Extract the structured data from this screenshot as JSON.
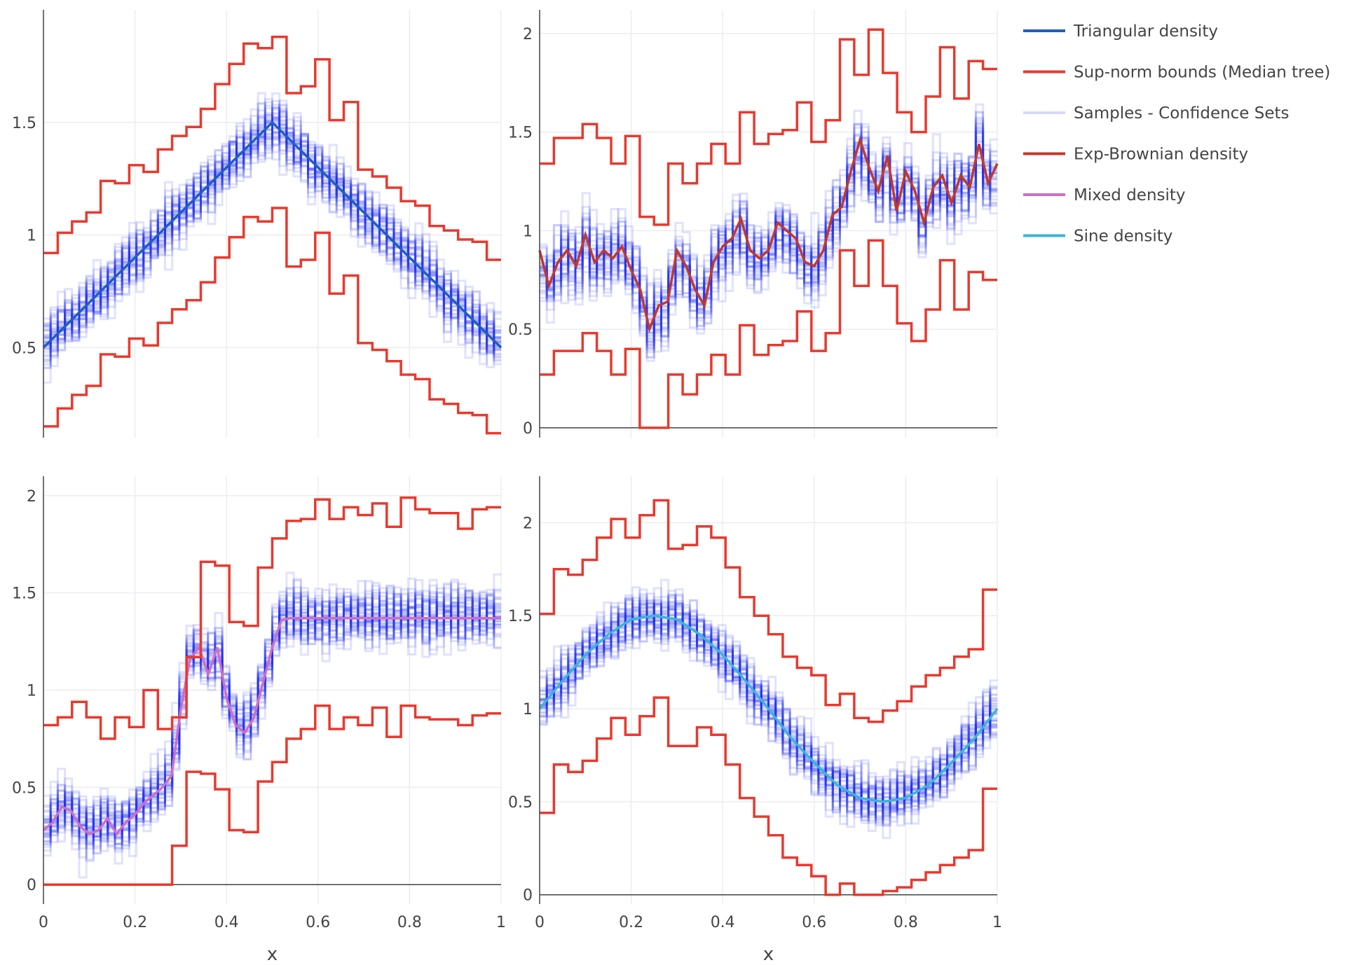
{
  "chart_data": [
    {
      "type": "line",
      "panel": "top-left",
      "xlabel": "",
      "ylabel": "",
      "xlim": [
        0,
        1
      ],
      "ylim": [
        0.1,
        2.0
      ],
      "xticks": [
        0,
        0.2,
        0.4,
        0.6,
        0.8,
        1
      ],
      "yticks": [
        0.5,
        1,
        1.5
      ],
      "ytick_labels": [
        "0.5",
        "1",
        "1.5"
      ],
      "show_xtick_labels": false,
      "zero_line": false,
      "true_density": {
        "name": "Triangular  density",
        "color": "#1f5fbf",
        "x": [
          0,
          0.5,
          1
        ],
        "y": [
          0.5,
          1.5,
          0.5
        ]
      },
      "bound_edges": [
        0,
        0.0312,
        0.0625,
        0.0938,
        0.125,
        0.1562,
        0.1875,
        0.2188,
        0.25,
        0.2812,
        0.3125,
        0.3438,
        0.375,
        0.4062,
        0.4375,
        0.4688,
        0.5,
        0.5312,
        0.5625,
        0.5938,
        0.625,
        0.6562,
        0.6875,
        0.7188,
        0.75,
        0.7812,
        0.8125,
        0.8438,
        0.875,
        0.9062,
        0.9375,
        0.9688,
        1
      ],
      "upper_bound": [
        0.92,
        1.01,
        1.06,
        1.1,
        1.24,
        1.23,
        1.31,
        1.28,
        1.38,
        1.44,
        1.48,
        1.56,
        1.67,
        1.76,
        1.85,
        1.83,
        1.88,
        1.63,
        1.66,
        1.78,
        1.51,
        1.59,
        1.29,
        1.26,
        1.21,
        1.15,
        1.13,
        1.04,
        1.02,
        0.98,
        0.97,
        0.89
      ],
      "lower_bound": [
        0.15,
        0.23,
        0.29,
        0.33,
        0.47,
        0.46,
        0.54,
        0.51,
        0.61,
        0.67,
        0.71,
        0.79,
        0.9,
        0.99,
        1.08,
        1.06,
        1.12,
        0.86,
        0.89,
        1.01,
        0.74,
        0.82,
        0.52,
        0.49,
        0.44,
        0.38,
        0.36,
        0.27,
        0.25,
        0.21,
        0.2,
        0.12
      ],
      "sample_sd": 0.06,
      "sample_bias": 0.0
    },
    {
      "type": "line",
      "panel": "top-right",
      "xlabel": "",
      "ylabel": "",
      "xlim": [
        0,
        1
      ],
      "ylim": [
        -0.05,
        2.12
      ],
      "xticks": [
        0,
        0.2,
        0.4,
        0.6,
        0.8,
        1
      ],
      "yticks": [
        0,
        0.5,
        1,
        1.5,
        2
      ],
      "ytick_labels": [
        "0",
        "0.5",
        "1",
        "1.5",
        "2"
      ],
      "show_xtick_labels": false,
      "zero_line": true,
      "true_density": {
        "name": "Exp-Brownian  density",
        "color": "#c0392b",
        "x": [
          0,
          0.02,
          0.04,
          0.06,
          0.08,
          0.1,
          0.12,
          0.14,
          0.16,
          0.18,
          0.2,
          0.22,
          0.24,
          0.26,
          0.28,
          0.3,
          0.32,
          0.34,
          0.36,
          0.38,
          0.4,
          0.42,
          0.44,
          0.46,
          0.48,
          0.5,
          0.52,
          0.54,
          0.56,
          0.58,
          0.6,
          0.62,
          0.64,
          0.66,
          0.68,
          0.7,
          0.72,
          0.74,
          0.76,
          0.78,
          0.8,
          0.82,
          0.84,
          0.86,
          0.88,
          0.9,
          0.92,
          0.94,
          0.96,
          0.98,
          1
        ],
        "y": [
          0.9,
          0.72,
          0.84,
          0.9,
          0.82,
          0.98,
          0.84,
          0.9,
          0.86,
          0.92,
          0.8,
          0.7,
          0.5,
          0.62,
          0.64,
          0.9,
          0.82,
          0.7,
          0.62,
          0.84,
          0.92,
          0.96,
          1.06,
          0.9,
          0.86,
          0.9,
          1.04,
          1.0,
          0.96,
          0.84,
          0.82,
          0.9,
          1.08,
          1.12,
          1.3,
          1.46,
          1.32,
          1.2,
          1.38,
          1.1,
          1.3,
          1.2,
          1.04,
          1.22,
          1.28,
          1.14,
          1.28,
          1.22,
          1.44,
          1.24,
          1.34
        ]
      },
      "bound_edges": [
        0,
        0.0312,
        0.0625,
        0.0938,
        0.125,
        0.1562,
        0.1875,
        0.2188,
        0.25,
        0.2812,
        0.3125,
        0.3438,
        0.375,
        0.4062,
        0.4375,
        0.4688,
        0.5,
        0.5312,
        0.5625,
        0.5938,
        0.625,
        0.6562,
        0.6875,
        0.7188,
        0.75,
        0.7812,
        0.8125,
        0.8438,
        0.875,
        0.9062,
        0.9375,
        0.9688,
        1
      ],
      "upper_bound": [
        1.34,
        1.47,
        1.47,
        1.54,
        1.47,
        1.34,
        1.48,
        1.07,
        1.03,
        1.34,
        1.24,
        1.34,
        1.44,
        1.34,
        1.6,
        1.44,
        1.49,
        1.51,
        1.65,
        1.45,
        1.56,
        1.97,
        1.79,
        2.02,
        1.8,
        1.6,
        1.5,
        1.68,
        1.93,
        1.67,
        1.86,
        1.82
      ],
      "lower_bound": [
        0.27,
        0.39,
        0.39,
        0.48,
        0.39,
        0.27,
        0.4,
        0.0,
        0.0,
        0.27,
        0.17,
        0.27,
        0.37,
        0.27,
        0.52,
        0.37,
        0.42,
        0.44,
        0.59,
        0.39,
        0.48,
        0.9,
        0.72,
        0.95,
        0.72,
        0.53,
        0.44,
        0.6,
        0.85,
        0.6,
        0.79,
        0.75
      ],
      "sample_sd": 0.08,
      "sample_bias": -0.02
    },
    {
      "type": "line",
      "panel": "bottom-left",
      "xlabel": "x",
      "ylabel": "",
      "xlim": [
        0,
        1
      ],
      "ylim": [
        -0.1,
        2.1
      ],
      "xticks": [
        0,
        0.2,
        0.4,
        0.6,
        0.8,
        1
      ],
      "xtick_labels": [
        "0",
        "0.2",
        "0.4",
        "0.6",
        "0.8",
        "1"
      ],
      "yticks": [
        0,
        0.5,
        1,
        1.5,
        2
      ],
      "ytick_labels": [
        "0",
        "0.5",
        "1",
        "1.5",
        "2"
      ],
      "show_xtick_labels": true,
      "zero_line": true,
      "true_density": {
        "name": "Mixed  density",
        "color": "#cc6fc4",
        "x": [
          0,
          0.02,
          0.04,
          0.06,
          0.08,
          0.1,
          0.12,
          0.14,
          0.16,
          0.18,
          0.2,
          0.22,
          0.24,
          0.26,
          0.28,
          0.3,
          0.32,
          0.34,
          0.36,
          0.38,
          0.4,
          0.42,
          0.44,
          0.46,
          0.48,
          0.5,
          0.52,
          0.54,
          0.6,
          0.7,
          0.8,
          0.9,
          1
        ],
        "y": [
          0.28,
          0.32,
          0.4,
          0.38,
          0.3,
          0.26,
          0.28,
          0.34,
          0.26,
          0.32,
          0.36,
          0.42,
          0.46,
          0.5,
          0.56,
          0.9,
          1.16,
          1.22,
          1.08,
          1.22,
          0.96,
          0.82,
          0.78,
          0.86,
          1.04,
          1.22,
          1.36,
          1.37,
          1.37,
          1.37,
          1.37,
          1.37,
          1.37
        ]
      },
      "bound_edges": [
        0,
        0.0312,
        0.0625,
        0.0938,
        0.125,
        0.1562,
        0.1875,
        0.2188,
        0.25,
        0.2812,
        0.3125,
        0.3438,
        0.375,
        0.4062,
        0.4375,
        0.4688,
        0.5,
        0.5312,
        0.5625,
        0.5938,
        0.625,
        0.6562,
        0.6875,
        0.7188,
        0.75,
        0.7812,
        0.8125,
        0.8438,
        0.875,
        0.9062,
        0.9375,
        0.9688,
        1
      ],
      "upper_bound": [
        0.82,
        0.86,
        0.94,
        0.86,
        0.75,
        0.86,
        0.81,
        1.0,
        0.8,
        0.86,
        1.17,
        1.66,
        1.64,
        1.35,
        1.33,
        1.63,
        1.78,
        1.87,
        1.88,
        1.98,
        1.88,
        1.94,
        1.9,
        1.96,
        1.84,
        1.99,
        1.93,
        1.91,
        1.91,
        1.83,
        1.93,
        1.94
      ],
      "lower_bound": [
        0.0,
        0.0,
        0.0,
        0.0,
        0.0,
        0.0,
        0.0,
        0.0,
        0.0,
        0.2,
        0.58,
        0.57,
        0.49,
        0.28,
        0.27,
        0.53,
        0.63,
        0.75,
        0.8,
        0.92,
        0.8,
        0.86,
        0.82,
        0.91,
        0.76,
        0.92,
        0.86,
        0.85,
        0.85,
        0.82,
        0.87,
        0.88
      ],
      "sample_sd": 0.07,
      "sample_bias": 0.01
    },
    {
      "type": "line",
      "panel": "bottom-right",
      "xlabel": "x",
      "ylabel": "",
      "xlim": [
        0,
        1
      ],
      "ylim": [
        -0.05,
        2.25
      ],
      "xticks": [
        0,
        0.2,
        0.4,
        0.6,
        0.8,
        1
      ],
      "xtick_labels": [
        "0",
        "0.2",
        "0.4",
        "0.6",
        "0.8",
        "1"
      ],
      "yticks": [
        0,
        0.5,
        1,
        1.5,
        2
      ],
      "ytick_labels": [
        "0",
        "0.5",
        "1",
        "1.5",
        "2"
      ],
      "show_xtick_labels": true,
      "zero_line": true,
      "true_density": {
        "name": "Sine  density",
        "color": "#3cb4d4",
        "x": [
          0,
          0.05,
          0.1,
          0.15,
          0.2,
          0.25,
          0.3,
          0.35,
          0.4,
          0.45,
          0.5,
          0.55,
          0.6,
          0.65,
          0.7,
          0.75,
          0.8,
          0.85,
          0.9,
          0.95,
          1
        ],
        "y": [
          1.0,
          1.15,
          1.29,
          1.4,
          1.48,
          1.5,
          1.48,
          1.4,
          1.29,
          1.15,
          1.0,
          0.84,
          0.71,
          0.59,
          0.52,
          0.5,
          0.52,
          0.59,
          0.71,
          0.84,
          1.0
        ]
      },
      "bound_edges": [
        0,
        0.0312,
        0.0625,
        0.0938,
        0.125,
        0.1562,
        0.1875,
        0.2188,
        0.25,
        0.2812,
        0.3125,
        0.3438,
        0.375,
        0.4062,
        0.4375,
        0.4688,
        0.5,
        0.5312,
        0.5625,
        0.5938,
        0.625,
        0.6562,
        0.6875,
        0.7188,
        0.75,
        0.7812,
        0.8125,
        0.8438,
        0.875,
        0.9062,
        0.9375,
        0.9688,
        1
      ],
      "upper_bound": [
        1.51,
        1.75,
        1.72,
        1.8,
        1.92,
        2.02,
        1.92,
        2.04,
        2.12,
        1.86,
        1.88,
        1.98,
        1.92,
        1.76,
        1.6,
        1.5,
        1.4,
        1.28,
        1.22,
        1.18,
        1.02,
        1.08,
        0.95,
        0.93,
        0.99,
        1.04,
        1.12,
        1.18,
        1.22,
        1.28,
        1.32,
        1.64
      ],
      "lower_bound": [
        0.44,
        0.7,
        0.66,
        0.72,
        0.84,
        0.95,
        0.86,
        0.96,
        1.06,
        0.8,
        0.8,
        0.9,
        0.86,
        0.7,
        0.52,
        0.42,
        0.32,
        0.2,
        0.16,
        0.1,
        0.0,
        0.06,
        0.0,
        0.0,
        0.02,
        0.04,
        0.08,
        0.12,
        0.16,
        0.2,
        0.24,
        0.57
      ],
      "sample_sd": 0.07,
      "sample_bias": 0.0
    }
  ],
  "legend": {
    "placement": "top-right",
    "items": [
      {
        "label": "Triangular  density",
        "color": "#1f5fbf",
        "opacity": 1
      },
      {
        "label": "Sup-norm bounds (Median tree)",
        "color": "#e8392e",
        "opacity": 1
      },
      {
        "label": "Samples - Confidence Sets",
        "color": "#2233ee",
        "opacity": 0.18
      },
      {
        "label": "Exp-Brownian  density",
        "color": "#c0392b",
        "opacity": 1
      },
      {
        "label": "Mixed  density",
        "color": "#cc6fc4",
        "opacity": 1
      },
      {
        "label": "Sine  density",
        "color": "#3cb4d4",
        "opacity": 1
      }
    ]
  },
  "styles": {
    "bound_color": "#e8392e",
    "sample_color": "#2233ee",
    "grid_color": "#ebedf2",
    "axis_color": "#444444",
    "sample_count": 40,
    "sample_bins": 64
  }
}
